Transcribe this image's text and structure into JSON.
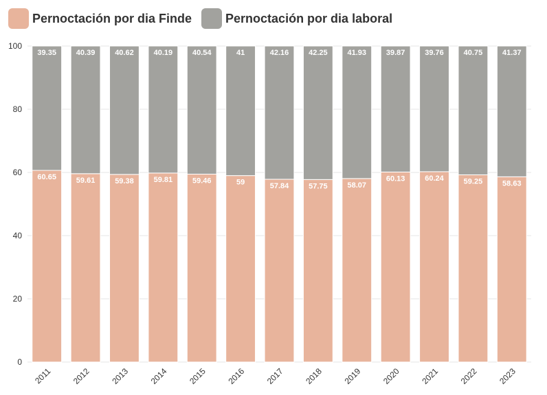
{
  "chart_data": {
    "type": "bar",
    "stacked": true,
    "categories": [
      "2011",
      "2012",
      "2013",
      "2014",
      "2015",
      "2016",
      "2017",
      "2018",
      "2019",
      "2020",
      "2021",
      "2022",
      "2023"
    ],
    "series": [
      {
        "name": "Pernoctación por dia Finde",
        "color": "#e8b49c",
        "values": [
          60.65,
          59.61,
          59.38,
          59.81,
          59.46,
          59,
          57.84,
          57.75,
          58.07,
          60.13,
          60.24,
          59.25,
          58.63
        ],
        "labels": [
          "60.65",
          "59.61",
          "59.38",
          "59.81",
          "59.46",
          "59",
          "57.84",
          "57.75",
          "58.07",
          "60.13",
          "60.24",
          "59.25",
          "58.63"
        ]
      },
      {
        "name": "Pernoctación por dia laboral",
        "color": "#a2a29e",
        "values": [
          39.35,
          40.39,
          40.62,
          40.19,
          40.54,
          41,
          42.16,
          42.25,
          41.93,
          39.87,
          39.76,
          40.75,
          41.37
        ],
        "labels": [
          "39.35",
          "40.39",
          "40.62",
          "40.19",
          "40.54",
          "41",
          "42.16",
          "42.25",
          "41.93",
          "39.87",
          "39.76",
          "40.75",
          "41.37"
        ]
      }
    ],
    "ylim": [
      0,
      100
    ],
    "yticks": [
      "0",
      "20",
      "40",
      "60",
      "80",
      "100"
    ],
    "grid": true,
    "legend_position": "top-left"
  }
}
